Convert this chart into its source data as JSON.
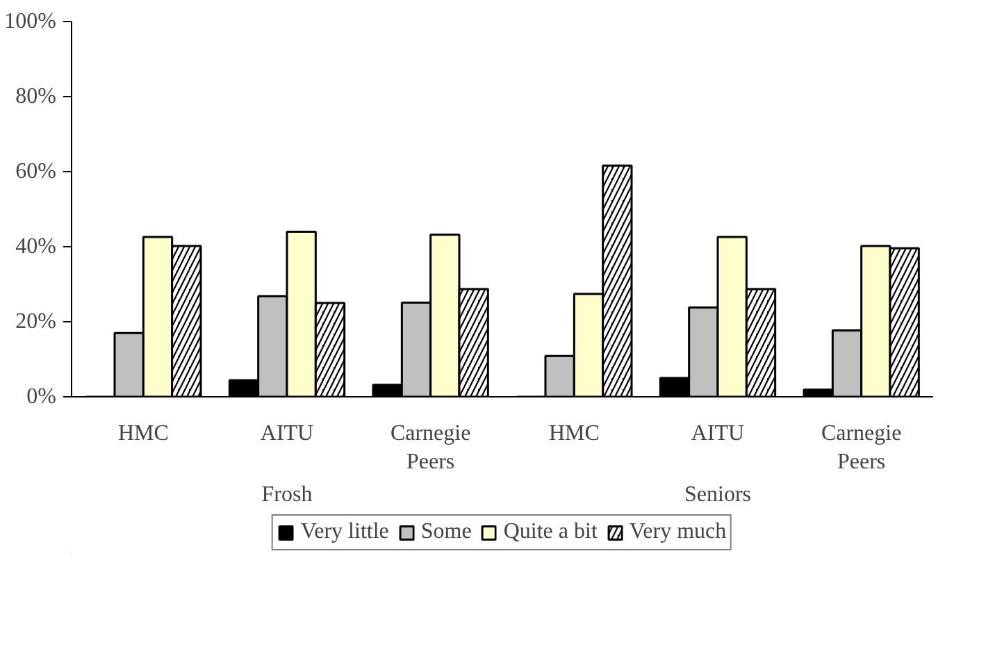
{
  "chart_data": {
    "type": "bar",
    "categories": [
      "HMC",
      "AITU",
      "Carnegie Peers",
      "HMC",
      "AITU",
      "Carnegie Peers"
    ],
    "annotations": [
      "Frosh",
      "Seniors"
    ],
    "series": [
      {
        "name": "Very little",
        "color": "#000000",
        "values": [
          0,
          4.4,
          3.2,
          0,
          5.0,
          1.9
        ]
      },
      {
        "name": "Some",
        "color": "#c0c0c0",
        "values": [
          17.0,
          26.8,
          25.1,
          10.9,
          23.8,
          17.7
        ]
      },
      {
        "name": "Quite a bit",
        "color": "#ffffcc",
        "values": [
          42.6,
          44.0,
          43.2,
          27.4,
          42.6,
          40.2
        ]
      },
      {
        "name": "Very much",
        "color": "#000000",
        "values": [
          40.2,
          25.0,
          28.7,
          61.6,
          28.7,
          39.6
        ]
      }
    ],
    "ylim": [
      0,
      100
    ],
    "yticks": [
      {
        "value": 0,
        "label": "0%"
      },
      {
        "value": 20,
        "label": "20%"
      },
      {
        "value": 40,
        "label": "40%"
      },
      {
        "value": 60,
        "label": "60%"
      },
      {
        "value": 80,
        "label": "80%"
      },
      {
        "value": 100,
        "label": "100%"
      }
    ],
    "grid": false,
    "legend": "bottom"
  }
}
